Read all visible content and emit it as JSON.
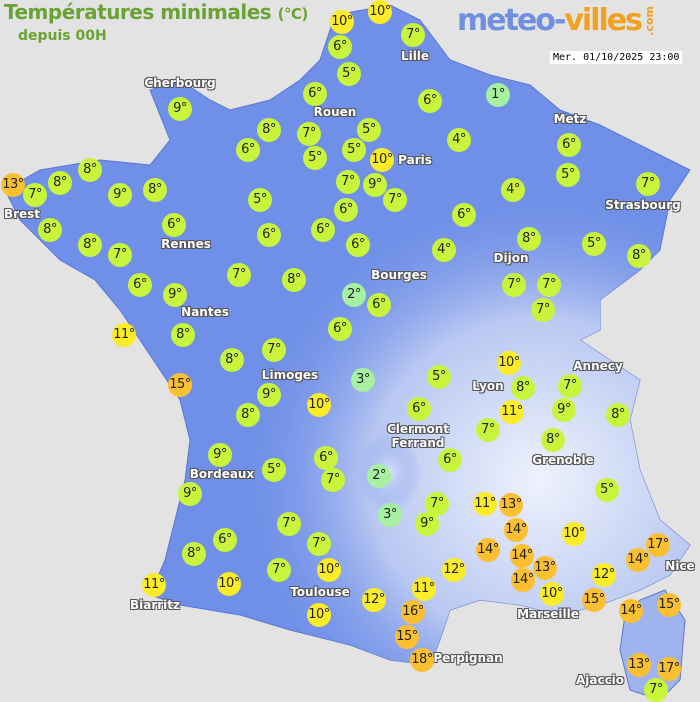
{
  "header": {
    "title": "Températures minimales",
    "unit": "(°C)",
    "subtitle": "depuis 00H",
    "brand_part1": "meteo-",
    "brand_part2": "villes",
    "brand_suffix": ".com",
    "timestamp": "Mer. 01/10/2025 23:00"
  },
  "colors": {
    "cold": "#a6f0a0",
    "cool": "#c8f53c",
    "mild": "#fbec2a",
    "warm": "#fbbf32",
    "land": "#6f8fe8",
    "background": "#e3e3e3"
  },
  "cities": [
    "Cherbourg",
    "Lille",
    "Rouen",
    "Metz",
    "Paris",
    "Brest",
    "Strasbourg",
    "Rennes",
    "Dijon",
    "Bourges",
    "Nantes",
    "Annecy",
    "Lyon",
    "Limoges",
    "Clermont Ferrand",
    "Grenoble",
    "Bordeaux",
    "Nice",
    "Toulouse",
    "Marseille",
    "Biarritz",
    "Perpignan",
    "Ajaccio"
  ],
  "temperatures": [
    "10°",
    "10°",
    "7°",
    "6°",
    "5°",
    "6°",
    "6°",
    "1°",
    "9°",
    "8°",
    "7°",
    "5°",
    "6°",
    "5°",
    "5°",
    "10°",
    "4°",
    "6°",
    "13°",
    "7°",
    "8°",
    "8°",
    "9°",
    "8°",
    "7°",
    "9°",
    "7°",
    "5°",
    "4°",
    "5°",
    "7°",
    "6°",
    "8°",
    "6°",
    "6°",
    "6°",
    "6°",
    "8°",
    "7°",
    "6°",
    "4°",
    "8°",
    "5°",
    "8°",
    "6°",
    "7°",
    "8°",
    "9°",
    "2°",
    "6°",
    "7°",
    "7°",
    "7°",
    "11°",
    "8°",
    "6°",
    "8°",
    "7°",
    "15°",
    "10°",
    "8°",
    "7°",
    "3°",
    "5°",
    "9°",
    "9°",
    "11°",
    "8°",
    "8°",
    "10°",
    "6°",
    "7°",
    "8°",
    "9°",
    "6°",
    "6°",
    "5°",
    "7°",
    "2°",
    "9°",
    "7°",
    "11°",
    "13°",
    "5°",
    "3°",
    "9°",
    "14°",
    "7°",
    "6°",
    "10°",
    "7°",
    "14°",
    "14°",
    "17°",
    "8°",
    "14°",
    "10°",
    "13°",
    "7°",
    "12°",
    "14°",
    "11°",
    "10°",
    "12°",
    "10°",
    "11°",
    "12°",
    "15°",
    "15°",
    "14°",
    "10°",
    "16°",
    "15°",
    "18°",
    "13°",
    "17°",
    "7°"
  ]
}
